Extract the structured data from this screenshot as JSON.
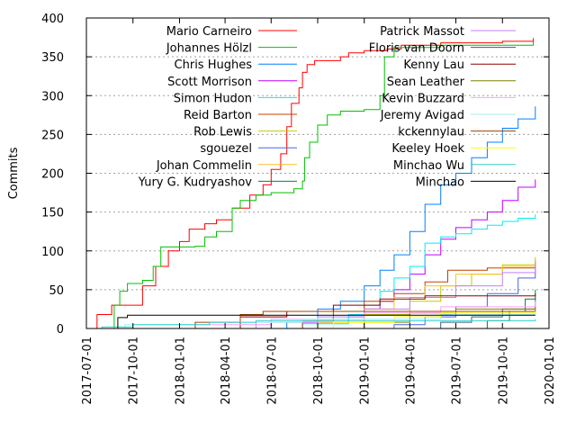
{
  "chart_data": {
    "type": "line",
    "title": "",
    "xlabel": "",
    "ylabel": "Commits",
    "ylim": [
      0,
      400
    ],
    "xlim": [
      "2017-07-01",
      "2020-01-01"
    ],
    "y_ticks": [
      0,
      50,
      100,
      150,
      200,
      250,
      300,
      350,
      400
    ],
    "x_ticks": [
      "2017-07-01",
      "2017-10-01",
      "2018-01-01",
      "2018-04-01",
      "2018-07-01",
      "2018-10-01",
      "2019-01-01",
      "2019-04-01",
      "2019-07-01",
      "2019-10-01",
      "2020-01-01"
    ],
    "grid": "horizontal dashed",
    "legend_position": "top-left, two columns",
    "series": [
      {
        "name": "Mario Carneiro",
        "color": "#ff0000",
        "points": [
          [
            "2017-07-15",
            0
          ],
          [
            "2017-07-22",
            18
          ],
          [
            "2017-08-10",
            18
          ],
          [
            "2017-08-20",
            30
          ],
          [
            "2017-10-01",
            30
          ],
          [
            "2017-10-20",
            55
          ],
          [
            "2017-11-15",
            80
          ],
          [
            "2017-12-10",
            100
          ],
          [
            "2018-01-01",
            112
          ],
          [
            "2018-01-20",
            128
          ],
          [
            "2018-02-20",
            135
          ],
          [
            "2018-03-15",
            140
          ],
          [
            "2018-04-15",
            155
          ],
          [
            "2018-05-20",
            172
          ],
          [
            "2018-06-15",
            185
          ],
          [
            "2018-07-01",
            205
          ],
          [
            "2018-07-20",
            225
          ],
          [
            "2018-08-01",
            260
          ],
          [
            "2018-08-10",
            290
          ],
          [
            "2018-08-25",
            310
          ],
          [
            "2018-09-01",
            330
          ],
          [
            "2018-09-10",
            340
          ],
          [
            "2018-09-25",
            345
          ],
          [
            "2018-11-15",
            350
          ],
          [
            "2018-12-01",
            355
          ],
          [
            "2019-01-01",
            358
          ],
          [
            "2019-02-15",
            360
          ],
          [
            "2019-03-15",
            365
          ],
          [
            "2019-06-01",
            368
          ],
          [
            "2019-10-01",
            370
          ],
          [
            "2019-12-01",
            374
          ]
        ]
      },
      {
        "name": "Johannes Hölzl",
        "color": "#00c000",
        "points": [
          [
            "2017-08-20",
            0
          ],
          [
            "2017-08-25",
            30
          ],
          [
            "2017-09-05",
            48
          ],
          [
            "2017-09-20",
            58
          ],
          [
            "2017-10-20",
            62
          ],
          [
            "2017-11-10",
            80
          ],
          [
            "2017-11-25",
            105
          ],
          [
            "2018-02-01",
            106
          ],
          [
            "2018-02-20",
            118
          ],
          [
            "2018-03-15",
            125
          ],
          [
            "2018-04-15",
            155
          ],
          [
            "2018-05-01",
            165
          ],
          [
            "2018-06-01",
            172
          ],
          [
            "2018-07-01",
            175
          ],
          [
            "2018-08-15",
            180
          ],
          [
            "2018-09-01",
            190
          ],
          [
            "2018-09-05",
            220
          ],
          [
            "2018-09-15",
            240
          ],
          [
            "2018-10-01",
            262
          ],
          [
            "2018-10-20",
            275
          ],
          [
            "2018-11-15",
            280
          ],
          [
            "2019-01-01",
            282
          ],
          [
            "2019-02-01",
            300
          ],
          [
            "2019-02-10",
            350
          ],
          [
            "2019-03-01",
            362
          ],
          [
            "2019-06-01",
            365
          ],
          [
            "2019-12-01",
            370
          ]
        ]
      },
      {
        "name": "Chris Hughes",
        "color": "#0080ff",
        "points": [
          [
            "2018-06-01",
            0
          ],
          [
            "2018-08-01",
            8
          ],
          [
            "2018-10-01",
            25
          ],
          [
            "2018-11-15",
            35
          ],
          [
            "2019-01-01",
            55
          ],
          [
            "2019-02-01",
            75
          ],
          [
            "2019-03-01",
            95
          ],
          [
            "2019-04-01",
            125
          ],
          [
            "2019-05-01",
            160
          ],
          [
            "2019-06-01",
            185
          ],
          [
            "2019-07-01",
            200
          ],
          [
            "2019-08-01",
            220
          ],
          [
            "2019-09-01",
            240
          ],
          [
            "2019-10-01",
            258
          ],
          [
            "2019-11-01",
            270
          ],
          [
            "2019-12-05",
            286
          ]
        ]
      },
      {
        "name": "Scott Morrison",
        "color": "#c000ff",
        "points": [
          [
            "2018-05-01",
            0
          ],
          [
            "2018-09-01",
            8
          ],
          [
            "2018-12-01",
            15
          ],
          [
            "2019-01-01",
            25
          ],
          [
            "2019-02-01",
            35
          ],
          [
            "2019-03-01",
            50
          ],
          [
            "2019-04-01",
            70
          ],
          [
            "2019-05-01",
            95
          ],
          [
            "2019-06-01",
            115
          ],
          [
            "2019-07-01",
            130
          ],
          [
            "2019-08-01",
            140
          ],
          [
            "2019-09-01",
            150
          ],
          [
            "2019-10-01",
            165
          ],
          [
            "2019-11-01",
            182
          ],
          [
            "2019-12-05",
            192
          ]
        ]
      },
      {
        "name": "Simon Hudon",
        "color": "#00eeee",
        "points": [
          [
            "2018-05-01",
            0
          ],
          [
            "2018-09-01",
            6
          ],
          [
            "2018-12-01",
            18
          ],
          [
            "2019-01-01",
            30
          ],
          [
            "2019-02-01",
            48
          ],
          [
            "2019-03-01",
            65
          ],
          [
            "2019-04-01",
            80
          ],
          [
            "2019-05-01",
            110
          ],
          [
            "2019-06-01",
            118
          ],
          [
            "2019-07-01",
            122
          ],
          [
            "2019-08-01",
            128
          ],
          [
            "2019-09-01",
            133
          ],
          [
            "2019-10-01",
            138
          ],
          [
            "2019-11-01",
            142
          ],
          [
            "2019-12-05",
            147
          ]
        ]
      },
      {
        "name": "Reid Barton",
        "color": "#c04000",
        "points": [
          [
            "2018-07-01",
            0
          ],
          [
            "2018-09-01",
            10
          ],
          [
            "2018-11-01",
            22
          ],
          [
            "2019-01-01",
            35
          ],
          [
            "2019-03-01",
            45
          ],
          [
            "2019-05-01",
            60
          ],
          [
            "2019-06-15",
            75
          ],
          [
            "2019-09-01",
            78
          ],
          [
            "2019-12-05",
            80
          ]
        ]
      },
      {
        "name": "Rob Lewis",
        "color": "#c8c800",
        "points": [
          [
            "2018-06-01",
            0
          ],
          [
            "2018-10-01",
            8
          ],
          [
            "2019-01-01",
            18
          ],
          [
            "2019-04-01",
            35
          ],
          [
            "2019-06-01",
            55
          ],
          [
            "2019-08-01",
            70
          ],
          [
            "2019-10-01",
            82
          ],
          [
            "2019-12-05",
            92
          ]
        ]
      },
      {
        "name": "sgouezel",
        "color": "#4169e1",
        "points": [
          [
            "2019-01-01",
            0
          ],
          [
            "2019-03-01",
            5
          ],
          [
            "2019-05-01",
            15
          ],
          [
            "2019-07-01",
            28
          ],
          [
            "2019-09-01",
            45
          ],
          [
            "2019-11-01",
            65
          ],
          [
            "2019-12-05",
            88
          ]
        ]
      },
      {
        "name": "Johan Commelin",
        "color": "#ffc020",
        "points": [
          [
            "2018-08-01",
            0
          ],
          [
            "2018-10-01",
            12
          ],
          [
            "2019-01-01",
            25
          ],
          [
            "2019-03-01",
            40
          ],
          [
            "2019-05-01",
            55
          ],
          [
            "2019-07-01",
            70
          ],
          [
            "2019-10-01",
            80
          ],
          [
            "2019-12-05",
            88
          ]
        ]
      },
      {
        "name": "Yury G. Kudryashov",
        "color": "#008040",
        "points": [
          [
            "2019-07-01",
            0
          ],
          [
            "2019-09-01",
            10
          ],
          [
            "2019-10-15",
            22
          ],
          [
            "2019-11-15",
            38
          ],
          [
            "2019-12-05",
            50
          ]
        ]
      },
      {
        "name": "Patrick Massot",
        "color": "#c080ff",
        "points": [
          [
            "2018-03-01",
            0
          ],
          [
            "2018-06-01",
            8
          ],
          [
            "2018-10-01",
            15
          ],
          [
            "2019-01-01",
            25
          ],
          [
            "2019-04-01",
            40
          ],
          [
            "2019-07-01",
            55
          ],
          [
            "2019-10-01",
            72
          ],
          [
            "2019-12-05",
            85
          ]
        ]
      },
      {
        "name": "Floris van Doorn",
        "color": "#306080",
        "points": [
          [
            "2019-04-01",
            0
          ],
          [
            "2019-06-01",
            8
          ],
          [
            "2019-08-01",
            15
          ],
          [
            "2019-10-01",
            25
          ],
          [
            "2019-12-05",
            40
          ]
        ]
      },
      {
        "name": "Kenny Lau",
        "color": "#8b0000",
        "points": [
          [
            "2018-03-01",
            0
          ],
          [
            "2018-05-01",
            15
          ],
          [
            "2018-08-01",
            22
          ],
          [
            "2018-11-01",
            30
          ],
          [
            "2019-02-01",
            38
          ],
          [
            "2019-05-01",
            42
          ],
          [
            "2019-12-05",
            45
          ]
        ]
      },
      {
        "name": "Sean Leather",
        "color": "#808000",
        "points": [
          [
            "2018-09-01",
            0
          ],
          [
            "2019-01-01",
            8
          ],
          [
            "2019-04-01",
            20
          ],
          [
            "2019-07-01",
            25
          ],
          [
            "2019-12-05",
            30
          ]
        ]
      },
      {
        "name": "Kevin Buzzard",
        "color": "#ffa0ff",
        "points": [
          [
            "2017-09-01",
            0
          ],
          [
            "2018-02-01",
            5
          ],
          [
            "2018-07-01",
            12
          ],
          [
            "2019-01-01",
            20
          ],
          [
            "2019-06-01",
            28
          ],
          [
            "2019-12-05",
            35
          ]
        ]
      },
      {
        "name": "Jeremy Avigad",
        "color": "#a0f0f0",
        "points": [
          [
            "2017-08-01",
            0
          ],
          [
            "2017-09-15",
            5
          ],
          [
            "2018-03-01",
            8
          ],
          [
            "2018-09-01",
            12
          ],
          [
            "2019-06-01",
            18
          ],
          [
            "2019-12-05",
            22
          ]
        ]
      },
      {
        "name": "kckennylau",
        "color": "#a04000",
        "points": [
          [
            "2017-08-01",
            0
          ],
          [
            "2018-02-01",
            8
          ],
          [
            "2018-05-01",
            18
          ],
          [
            "2018-06-15",
            22
          ],
          [
            "2019-12-05",
            24
          ]
        ]
      },
      {
        "name": "Keeley Hoek",
        "color": "#ffff00",
        "points": [
          [
            "2018-08-01",
            0
          ],
          [
            "2018-11-01",
            8
          ],
          [
            "2019-03-01",
            15
          ],
          [
            "2019-06-01",
            20
          ],
          [
            "2019-12-05",
            22
          ]
        ]
      },
      {
        "name": "Minchao Wu",
        "color": "#30d0d0",
        "points": [
          [
            "2017-07-15",
            0
          ],
          [
            "2017-08-01",
            2
          ],
          [
            "2017-10-01",
            5
          ],
          [
            "2018-03-01",
            8
          ],
          [
            "2018-06-01",
            10
          ],
          [
            "2019-12-05",
            12
          ]
        ]
      },
      {
        "name": "Minchao",
        "color": "#000000",
        "points": [
          [
            "2017-08-20",
            0
          ],
          [
            "2017-09-01",
            14
          ],
          [
            "2017-09-20",
            17
          ],
          [
            "2019-12-05",
            17
          ]
        ]
      }
    ]
  }
}
